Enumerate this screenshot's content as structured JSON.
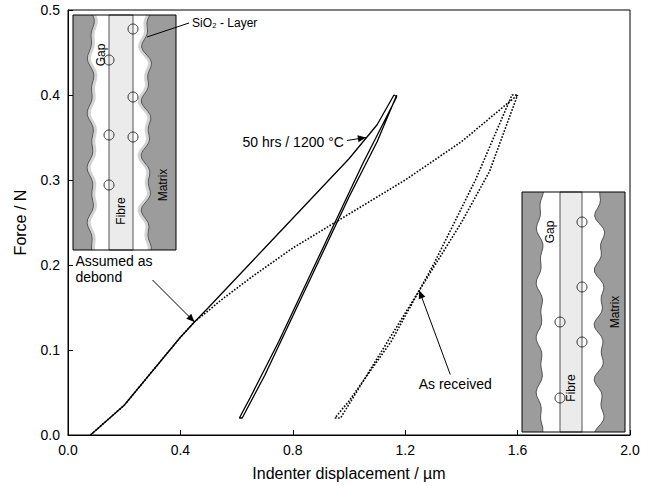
{
  "chart_data": {
    "type": "line",
    "xlabel": "Indenter displacement / µm",
    "ylabel": "Force / N",
    "xlim": [
      0,
      2.0
    ],
    "ylim": [
      0,
      0.5
    ],
    "xticks": [
      {
        "value": 0,
        "label": "0.0"
      },
      0.4,
      0.8,
      1.2,
      1.6,
      {
        "value": 2,
        "label": "2.0"
      }
    ],
    "yticks": [
      {
        "value": 0,
        "label": "0.0"
      },
      0.1,
      0.2,
      0.3,
      0.4,
      0.5
    ],
    "grid": false,
    "series": [
      {
        "name": "50 hrs / 1200 °C",
        "color": "#000000",
        "line_style": "solid",
        "points_to": [
          1.06,
          0.35
        ],
        "x": [
          0.08,
          0.2,
          0.3,
          0.4,
          0.45,
          0.5,
          0.6,
          0.7,
          0.8,
          0.9,
          1.0,
          1.1,
          1.16,
          1.17,
          1.05,
          0.95,
          0.85,
          0.75,
          0.65,
          0.61,
          0.62,
          0.7,
          0.8,
          0.9,
          1.0,
          1.1,
          1.17
        ],
        "values": [
          0,
          0.035,
          0.075,
          0.115,
          0.133,
          0.15,
          0.185,
          0.22,
          0.255,
          0.29,
          0.325,
          0.365,
          0.4,
          0.398,
          0.32,
          0.25,
          0.18,
          0.11,
          0.045,
          0.02,
          0.02,
          0.07,
          0.14,
          0.21,
          0.28,
          0.345,
          0.4
        ]
      },
      {
        "name": "As received",
        "color": "#000000",
        "line_style": "dotted",
        "points_to": [
          1.25,
          0.17
        ],
        "x": [
          0.08,
          0.2,
          0.3,
          0.4,
          0.45,
          0.55,
          0.65,
          0.8,
          1.0,
          1.2,
          1.4,
          1.6,
          1.58,
          1.45,
          1.3,
          1.15,
          1.0,
          0.95,
          0.97,
          1.1,
          1.25,
          1.4,
          1.5,
          1.6
        ],
        "values": [
          0,
          0.035,
          0.075,
          0.115,
          0.133,
          0.16,
          0.185,
          0.22,
          0.26,
          0.3,
          0.345,
          0.4,
          0.4,
          0.3,
          0.2,
          0.11,
          0.04,
          0.02,
          0.02,
          0.09,
          0.17,
          0.25,
          0.31,
          0.4
        ]
      }
    ],
    "annotations": [
      {
        "text": "Assumed as debond",
        "points_to": [
          0.45,
          0.133
        ]
      }
    ],
    "insets": [
      {
        "gap": "Gap",
        "fibre": "Fibre",
        "matrix": "Matrix",
        "layer": "SiO₂ - Layer"
      },
      {
        "gap": "Gap",
        "fibre": "Fibre",
        "matrix": "Matrix"
      }
    ]
  }
}
